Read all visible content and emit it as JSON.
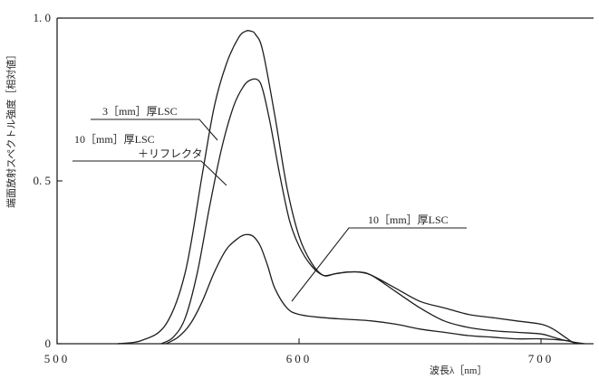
{
  "chart_data": {
    "type": "line",
    "xlabel": "波長λ［nm］",
    "ylabel": "端面放射スペクトル強度［相対値］",
    "xlim": [
      500,
      730
    ],
    "ylim": [
      0,
      1.0
    ],
    "x_ticks": [
      500,
      600,
      700
    ],
    "x_tick_labels": [
      "500",
      "600",
      "700"
    ],
    "y_ticks": [
      0,
      0.5,
      1.0
    ],
    "y_tick_labels": [
      "0",
      "0. 5",
      "1. 0"
    ],
    "grid": false,
    "series": [
      {
        "name": "3［mm］厚LSC",
        "x": [
          525,
          535,
          545,
          553,
          560,
          565,
          570,
          575,
          578,
          580,
          582,
          585,
          590,
          595,
          600,
          605,
          610,
          615,
          620,
          625,
          630,
          640,
          650,
          660,
          670,
          680,
          690,
          700,
          705,
          710,
          713,
          715
        ],
        "y": [
          0.0,
          0.01,
          0.06,
          0.22,
          0.52,
          0.73,
          0.86,
          0.94,
          0.96,
          0.96,
          0.95,
          0.9,
          0.7,
          0.48,
          0.33,
          0.25,
          0.21,
          0.215,
          0.22,
          0.22,
          0.21,
          0.17,
          0.13,
          0.11,
          0.09,
          0.08,
          0.07,
          0.06,
          0.045,
          0.02,
          0.005,
          0.0
        ]
      },
      {
        "name": "10［mm］厚LSC ＋リフレクタ",
        "x": [
          543,
          548,
          553,
          558,
          563,
          568,
          573,
          577,
          580,
          583,
          585,
          588,
          592,
          596,
          600,
          605,
          610,
          615,
          620,
          625,
          630,
          640,
          650,
          660,
          670,
          680,
          690,
          700,
          705,
          710,
          715,
          718
        ],
        "y": [
          0.0,
          0.02,
          0.08,
          0.22,
          0.42,
          0.6,
          0.73,
          0.79,
          0.81,
          0.81,
          0.78,
          0.68,
          0.52,
          0.38,
          0.3,
          0.24,
          0.21,
          0.215,
          0.22,
          0.22,
          0.21,
          0.16,
          0.11,
          0.07,
          0.05,
          0.04,
          0.035,
          0.03,
          0.02,
          0.01,
          0.003,
          0.0
        ]
      },
      {
        "name": "10［mm］厚LSC",
        "x": [
          545,
          550,
          555,
          560,
          565,
          570,
          575,
          578,
          581,
          584,
          587,
          590,
          595,
          600,
          610,
          620,
          630,
          640,
          650,
          660,
          670,
          680,
          690,
          700,
          710,
          713,
          715
        ],
        "y": [
          0.0,
          0.02,
          0.06,
          0.13,
          0.22,
          0.29,
          0.325,
          0.335,
          0.33,
          0.3,
          0.24,
          0.17,
          0.11,
          0.09,
          0.08,
          0.075,
          0.07,
          0.06,
          0.045,
          0.035,
          0.025,
          0.02,
          0.015,
          0.015,
          0.01,
          0.005,
          0.0
        ]
      }
    ]
  }
}
